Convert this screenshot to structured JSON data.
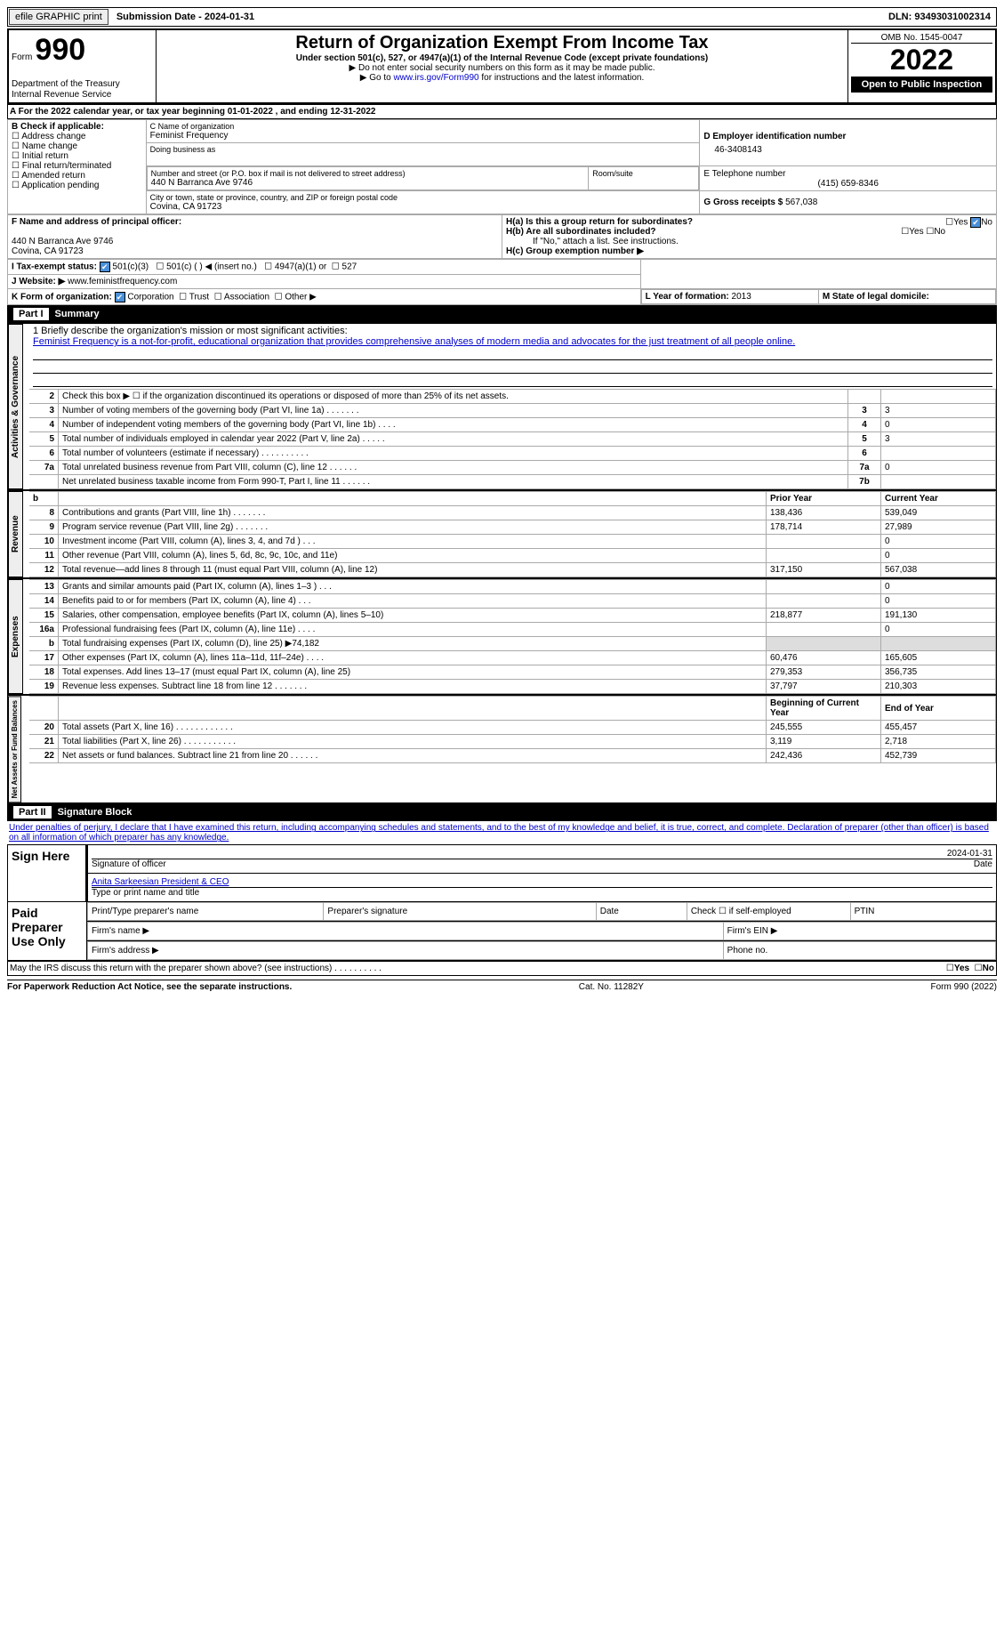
{
  "topbar": {
    "efile": "efile GRAPHIC print",
    "submission": "Submission Date - 2024-01-31",
    "dln_label": "DLN:",
    "dln": "93493031002314"
  },
  "header": {
    "form_prefix": "Form",
    "form_no": "990",
    "dept": "Department of the Treasury",
    "irs": "Internal Revenue Service",
    "title": "Return of Organization Exempt From Income Tax",
    "subtitle": "Under section 501(c), 527, or 4947(a)(1) of the Internal Revenue Code (except private foundations)",
    "note1": "▶ Do not enter social security numbers on this form as it may be made public.",
    "note2_prefix": "▶ Go to ",
    "note2_link": "www.irs.gov/Form990",
    "note2_suffix": " for instructions and the latest information.",
    "omb": "OMB No. 1545-0047",
    "year": "2022",
    "inspection": "Open to Public Inspection"
  },
  "period": "A For the 2022 calendar year, or tax year beginning 01-01-2022    , and ending 12-31-2022",
  "boxB": {
    "label": "B Check if applicable:",
    "opts": [
      "Address change",
      "Name change",
      "Initial return",
      "Final return/terminated",
      "Amended return",
      "Application pending"
    ]
  },
  "boxC": {
    "name_label": "C Name of organization",
    "name": "Feminist Frequency",
    "dba_label": "Doing business as",
    "addr_label": "Number and street (or P.O. box if mail is not delivered to street address)",
    "suite_label": "Room/suite",
    "addr": "440 N Barranca Ave 9746",
    "city_label": "City or town, state or province, country, and ZIP or foreign postal code",
    "city": "Covina, CA   91723"
  },
  "boxD": {
    "label": "D Employer identification number",
    "value": "46-3408143"
  },
  "boxE": {
    "label": "E Telephone number",
    "value": "(415) 659-8346"
  },
  "boxG": {
    "label": "G Gross receipts $",
    "value": "567,038"
  },
  "boxF": {
    "label": "F Name and address of principal officer:",
    "addr1": "440 N Barranca Ave 9746",
    "addr2": "Covina, CA  91723"
  },
  "boxH": {
    "h_a": "H(a)  Is this a group return for subordinates?",
    "h_b": "H(b)  Are all subordinates included?",
    "h_note": "If \"No,\" attach a list. See instructions.",
    "h_c": "H(c)  Group exemption number ▶"
  },
  "boxI": {
    "label": "I  Tax-exempt status:",
    "o1": "501(c)(3)",
    "o2": "501(c) (  ) ◀ (insert no.)",
    "o3": "4947(a)(1) or",
    "o4": "527"
  },
  "boxJ": {
    "label": "J  Website: ▶",
    "value": "www.feministfrequency.com"
  },
  "boxK": {
    "label": "K Form of organization:",
    "opts": [
      "Corporation",
      "Trust",
      "Association",
      "Other ▶"
    ]
  },
  "boxL": {
    "label": "L Year of formation:",
    "value": "2013"
  },
  "boxM": {
    "label": "M State of legal domicile:"
  },
  "part1": {
    "label": "Part I",
    "title": "Summary"
  },
  "mission": {
    "label": "1   Briefly describe the organization's mission or most significant activities:",
    "text": "Feminist Frequency is a not-for-profit, educational organization that provides comprehensive analyses of modern media and advocates for the just treatment of all people online."
  },
  "gov_rows": [
    {
      "n": "2",
      "t": "Check this box ▶ ☐  if the organization discontinued its operations or disposed of more than 25% of its net assets.",
      "box": "",
      "val": ""
    },
    {
      "n": "3",
      "t": "Number of voting members of the governing body (Part VI, line 1a)   .    .    .    .    .    .    .",
      "box": "3",
      "val": "3"
    },
    {
      "n": "4",
      "t": "Number of independent voting members of the governing body (Part VI, line 1b)   .    .    .    .",
      "box": "4",
      "val": "0"
    },
    {
      "n": "5",
      "t": "Total number of individuals employed in calendar year 2022 (Part V, line 2a)   .    .    .    .    .",
      "box": "5",
      "val": "3"
    },
    {
      "n": "6",
      "t": "Total number of volunteers (estimate if necessary)   .    .    .    .    .    .    .    .    .    .",
      "box": "6",
      "val": ""
    },
    {
      "n": "7a",
      "t": "Total unrelated business revenue from Part VIII, column (C), line 12    .    .    .    .    .    .",
      "box": "7a",
      "val": "0"
    },
    {
      "n": "",
      "t": "Net unrelated business taxable income from Form 990-T, Part I, line 11    .    .    .    .    .    .",
      "box": "7b",
      "val": ""
    }
  ],
  "fin_header": {
    "prior": "Prior Year",
    "current": "Current Year"
  },
  "revenue": [
    {
      "n": "8",
      "t": "Contributions and grants (Part VIII, line 1h)    .    .    .    .    .    .    .",
      "p": "138,436",
      "c": "539,049"
    },
    {
      "n": "9",
      "t": "Program service revenue (Part VIII, line 2g)    .    .    .    .    .    .    .",
      "p": "178,714",
      "c": "27,989"
    },
    {
      "n": "10",
      "t": "Investment income (Part VIII, column (A), lines 3, 4, and 7d )    .    .    .",
      "p": "",
      "c": "0"
    },
    {
      "n": "11",
      "t": "Other revenue (Part VIII, column (A), lines 5, 6d, 8c, 9c, 10c, and 11e)",
      "p": "",
      "c": "0"
    },
    {
      "n": "12",
      "t": "Total revenue—add lines 8 through 11 (must equal Part VIII, column (A), line 12)",
      "p": "317,150",
      "c": "567,038"
    }
  ],
  "expenses": [
    {
      "n": "13",
      "t": "Grants and similar amounts paid (Part IX, column (A), lines 1–3 )   .    .    .",
      "p": "",
      "c": "0"
    },
    {
      "n": "14",
      "t": "Benefits paid to or for members (Part IX, column (A), line 4)    .    .    .",
      "p": "",
      "c": "0"
    },
    {
      "n": "15",
      "t": "Salaries, other compensation, employee benefits (Part IX, column (A), lines 5–10)",
      "p": "218,877",
      "c": "191,130"
    },
    {
      "n": "16a",
      "t": "Professional fundraising fees (Part IX, column (A), line 11e)    .    .    .    .",
      "p": "",
      "c": "0"
    },
    {
      "n": "b",
      "t": "Total fundraising expenses (Part IX, column (D), line 25) ▶74,182",
      "p": "shade",
      "c": "shade"
    },
    {
      "n": "17",
      "t": "Other expenses (Part IX, column (A), lines 11a–11d, 11f–24e)    .    .    .    .",
      "p": "60,476",
      "c": "165,605"
    },
    {
      "n": "18",
      "t": "Total expenses. Add lines 13–17 (must equal Part IX, column (A), line 25)",
      "p": "279,353",
      "c": "356,735"
    },
    {
      "n": "19",
      "t": "Revenue less expenses. Subtract line 18 from line 12  .    .    .    .    .    .    .",
      "p": "37,797",
      "c": "210,303"
    }
  ],
  "net_header": {
    "begin": "Beginning of Current Year",
    "end": "End of Year"
  },
  "net": [
    {
      "n": "20",
      "t": "Total assets (Part X, line 16)  .    .    .    .    .    .    .    .    .    .    .    .",
      "p": "245,555",
      "c": "455,457"
    },
    {
      "n": "21",
      "t": "Total liabilities (Part X, line 26)  .    .    .    .    .    .    .    .    .    .    .",
      "p": "3,119",
      "c": "2,718"
    },
    {
      "n": "22",
      "t": "Net assets or fund balances. Subtract line 21 from line 20  .    .    .    .    .    .",
      "p": "242,436",
      "c": "452,739"
    }
  ],
  "part2": {
    "label": "Part II",
    "title": "Signature Block"
  },
  "penalty": "Under penalties of perjury, I declare that I have examined this return, including accompanying schedules and statements, and to the best of my knowledge and belief, it is true, correct, and complete. Declaration of preparer (other than officer) is based on all information of which preparer has any knowledge.",
  "sig": {
    "sign_here": "Sign Here",
    "sig_officer": "Signature of officer",
    "date": "Date",
    "date_val": "2024-01-31",
    "name_val": "Anita Sarkeesian  President & CEO",
    "name_label": "Type or print name and title",
    "paid": "Paid Preparer Use Only",
    "prep_name": "Print/Type preparer's name",
    "prep_sig": "Preparer's signature",
    "prep_date": "Date",
    "check_self": "Check ☐ if self-employed",
    "ptin": "PTIN",
    "firm_name": "Firm's name    ▶",
    "firm_ein": "Firm's EIN ▶",
    "firm_addr": "Firm's address ▶",
    "phone": "Phone no."
  },
  "discuss": "May the IRS discuss this return with the preparer shown above? (see instructions)    .    .    .    .    .    .    .    .    .    .",
  "footer": {
    "left": "For Paperwork Reduction Act Notice, see the separate instructions.",
    "mid": "Cat. No. 11282Y",
    "right": "Form 990 (2022)"
  },
  "side_labels": {
    "gov": "Activities & Governance",
    "rev": "Revenue",
    "exp": "Expenses",
    "net": "Net Assets or Fund Balances"
  },
  "yes": "Yes",
  "no": "No"
}
